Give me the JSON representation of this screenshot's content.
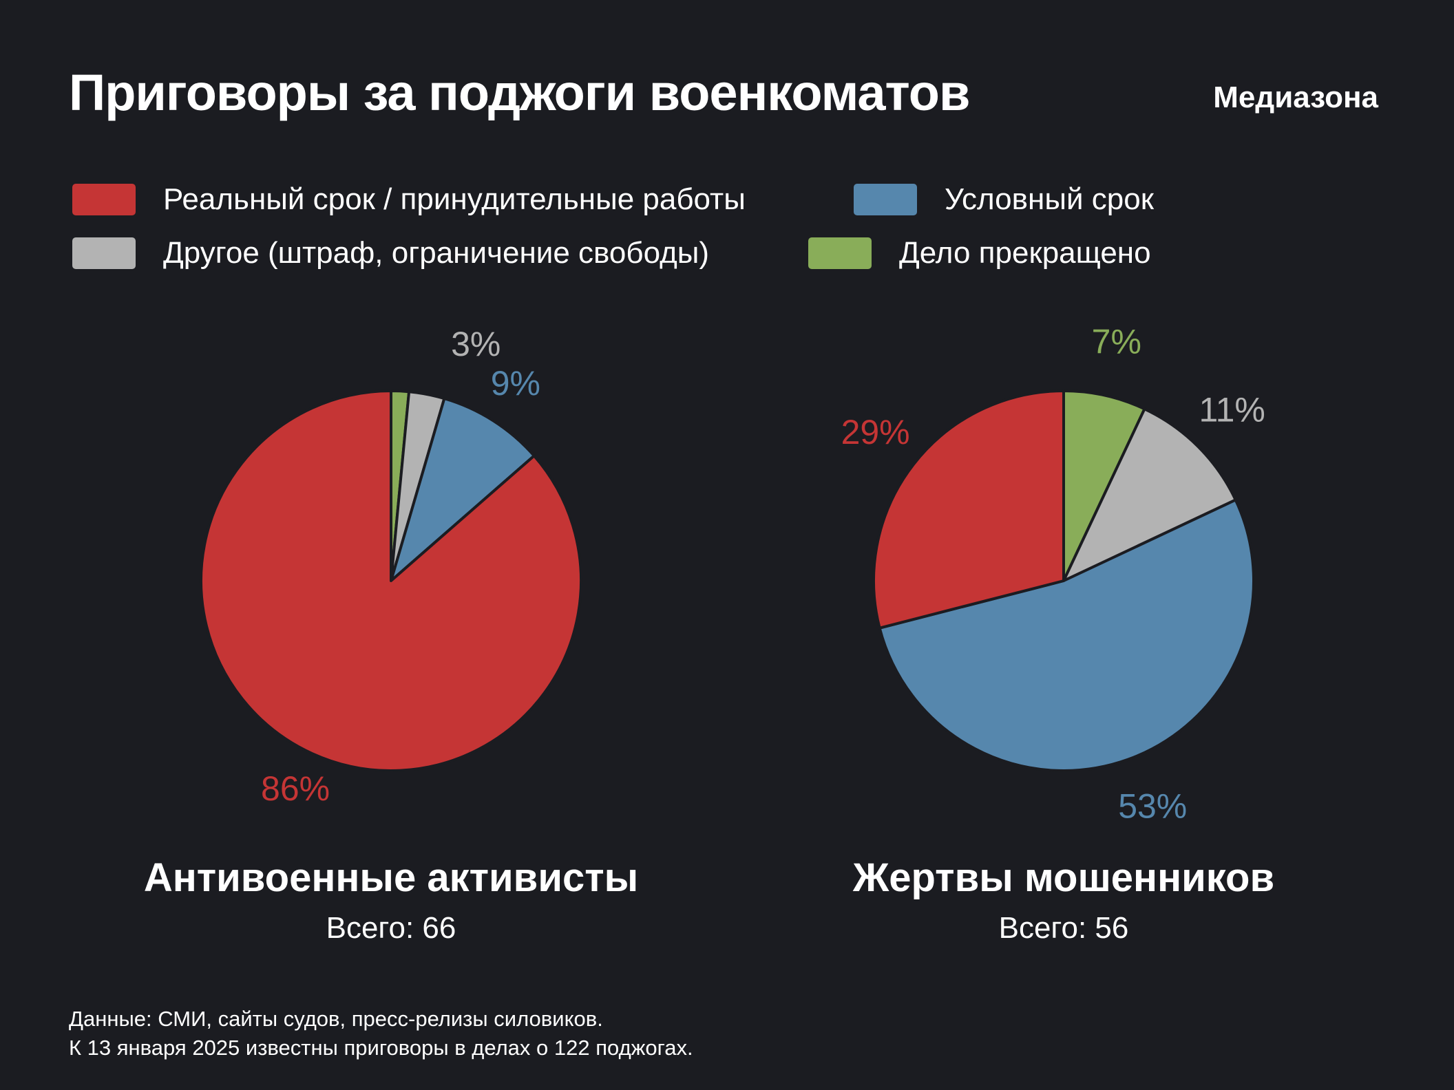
{
  "header": {
    "title": "Приговоры за поджоги военкоматов",
    "brand": "Медиазона"
  },
  "legend": [
    {
      "label": "Реальный срок / принудительные работы",
      "color": "#c53535"
    },
    {
      "label": "Условный срок",
      "color": "#5687ad"
    },
    {
      "label": "Другое (штраф, ограничение свободы)",
      "color": "#b3b3b3"
    },
    {
      "label": "Дело прекращено",
      "color": "#89ad59"
    }
  ],
  "chart_data": [
    {
      "type": "pie",
      "title": "Антивоенные активисты",
      "subtitle": "Всего: 66",
      "slices": [
        {
          "category": "Дело прекращено",
          "value": 1.5,
          "label": "",
          "color": "#89ad59"
        },
        {
          "category": "Другое (штраф, ограничение свободы)",
          "value": 3,
          "label": "3%",
          "color": "#b3b3b3"
        },
        {
          "category": "Условный срок",
          "value": 9,
          "label": "9%",
          "color": "#5687ad"
        },
        {
          "category": "Реальный срок / принудительные работы",
          "value": 86,
          "label": "86%",
          "color": "#c53535"
        }
      ]
    },
    {
      "type": "pie",
      "title": "Жертвы мошенников",
      "subtitle": "Всего: 56",
      "slices": [
        {
          "category": "Дело прекращено",
          "value": 7,
          "label": "7%",
          "color": "#89ad59"
        },
        {
          "category": "Другое (штраф, ограничение свободы)",
          "value": 11,
          "label": "11%",
          "color": "#b3b3b3"
        },
        {
          "category": "Условный срок",
          "value": 53,
          "label": "53%",
          "color": "#5687ad"
        },
        {
          "category": "Реальный срок / принудительные работы",
          "value": 29,
          "label": "29%",
          "color": "#c53535"
        }
      ]
    }
  ],
  "footnote": {
    "line1": "Данные: СМИ, сайты судов, пресс-релизы силовиков.",
    "line2": "К 13 января 2025 известны приговоры в делах о 122 поджогах."
  }
}
